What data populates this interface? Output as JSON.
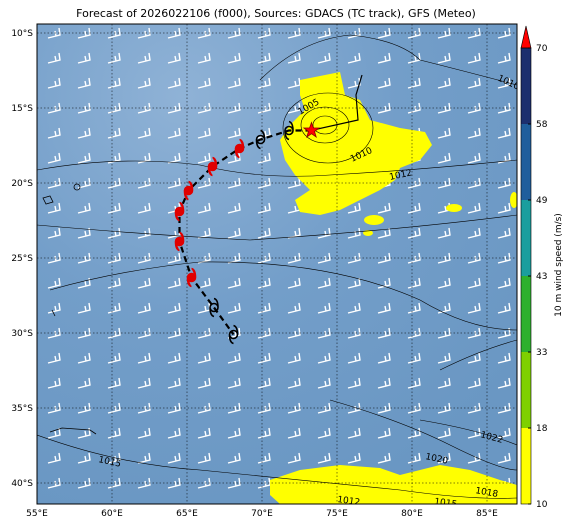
{
  "map": {
    "title": "Forecast of 2026022106 (f000), Sources: GDACS (TC track), GFS (Meteo)",
    "xlim": [
      55,
      87
    ],
    "ylim": [
      -9.4,
      -41.4
    ],
    "xticks": [
      {
        "value": 55,
        "label": "55°E"
      },
      {
        "value": 60,
        "label": "60°E"
      },
      {
        "value": 65,
        "label": "65°E"
      },
      {
        "value": 70,
        "label": "70°E"
      },
      {
        "value": 75,
        "label": "75°E"
      },
      {
        "value": 80,
        "label": "80°E"
      },
      {
        "value": 85,
        "label": "85°E"
      }
    ],
    "yticks": [
      {
        "value": -10,
        "label": "10°S"
      },
      {
        "value": -15,
        "label": "15°S"
      },
      {
        "value": -20,
        "label": "20°S"
      },
      {
        "value": -25,
        "label": "25°S"
      },
      {
        "value": -30,
        "label": "30°S"
      },
      {
        "value": -35,
        "label": "35°S"
      },
      {
        "value": -40,
        "label": "40°S"
      }
    ],
    "grid": true,
    "colorbar": {
      "label": "10 m wind speed (m/s)",
      "ticks": [
        10,
        18,
        33,
        43,
        49,
        58,
        70
      ],
      "colors": [
        "#ffff00",
        "#7fd000",
        "#2eb02e",
        "#1b9e9e",
        "#1f5e9c",
        "#1c2f6e"
      ],
      "extend_color": "#ff0000"
    },
    "contour_labels": [
      1010,
      1005,
      1010,
      1012,
      1015,
      1022,
      1020,
      1018,
      1012,
      1015
    ],
    "current": {
      "lon": 73.3,
      "lat": -16.5
    },
    "track": {
      "lon": [
        73.3,
        71.8,
        69.9,
        68.5,
        66.7,
        65.1,
        64.5,
        64.5,
        65.3,
        66.8,
        68.1
      ],
      "lat": [
        -16.5,
        -16.5,
        -17.1,
        -17.7,
        -18.9,
        -20.5,
        -21.9,
        -23.9,
        -26.3,
        -28.3,
        -30.1
      ],
      "intense": [
        false,
        false,
        false,
        true,
        true,
        true,
        true,
        true,
        true,
        false,
        false
      ]
    }
  }
}
